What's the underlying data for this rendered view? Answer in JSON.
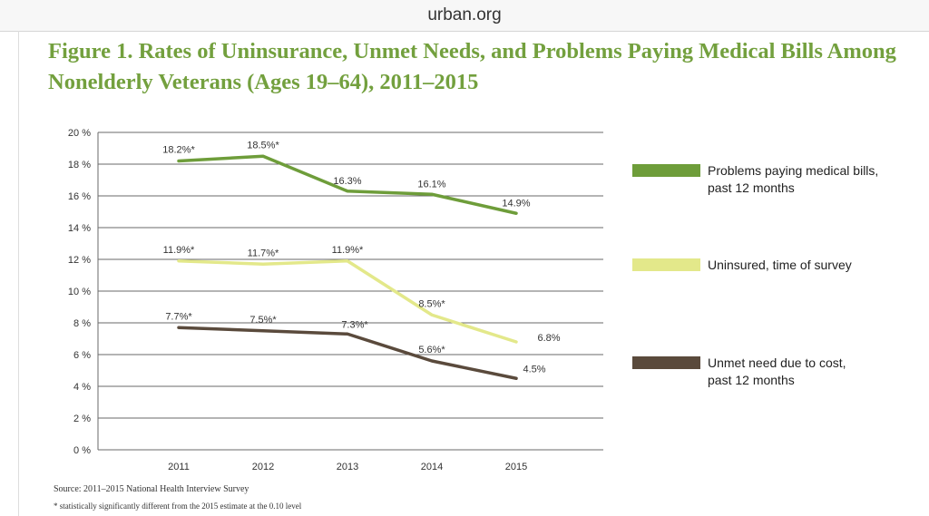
{
  "header": {
    "url": "urban.org"
  },
  "chart_data": {
    "type": "line",
    "title": "Figure 1. Rates of Uninsurance, Unmet Needs, and Problems Paying Medical Bills Among Nonelderly Veterans (Ages 19–64), 2011–2015",
    "x": [
      "2011",
      "2012",
      "2013",
      "2014",
      "2015"
    ],
    "ylim": [
      0,
      20
    ],
    "yticks": [
      {
        "v": 0,
        "label": "0 %"
      },
      {
        "v": 2,
        "label": "2 %"
      },
      {
        "v": 4,
        "label": "4 %"
      },
      {
        "v": 6,
        "label": "6 %"
      },
      {
        "v": 8,
        "label": "8 %"
      },
      {
        "v": 10,
        "label": "10 %"
      },
      {
        "v": 12,
        "label": "12 %"
      },
      {
        "v": 14,
        "label": "14 %"
      },
      {
        "v": 16,
        "label": "16 %"
      },
      {
        "v": 18,
        "label": "18 %"
      },
      {
        "v": 20,
        "label": "20 %"
      }
    ],
    "grid": true,
    "legend_position": "right",
    "series": [
      {
        "name": "Problems paying medical bills, past 12 months",
        "legend_lines": [
          "Problems paying medical bills,",
          "past 12 months"
        ],
        "color": "#6e9d3a",
        "values": [
          18.2,
          18.5,
          16.3,
          16.1,
          14.9
        ],
        "labels": [
          "18.2%*",
          "18.5%*",
          "16.3%",
          "16.1%",
          "14.9%"
        ]
      },
      {
        "name": "Uninsured, time of survey",
        "legend_lines": [
          "Uninsured, time of survey"
        ],
        "color": "#e3e88a",
        "values": [
          11.9,
          11.7,
          11.9,
          8.5,
          6.8
        ],
        "labels": [
          "11.9%*",
          "11.7%*",
          "11.9%*",
          "8.5%*",
          "6.8%"
        ]
      },
      {
        "name": "Unmet need due to cost, past 12 months",
        "legend_lines": [
          "Unmet need due to cost,",
          "past 12 months"
        ],
        "color": "#5a4a3c",
        "values": [
          7.7,
          7.5,
          7.3,
          5.6,
          4.5
        ],
        "labels": [
          "7.7%*",
          "7.5%*",
          "7.3%*",
          "5.6%*",
          "4.5%"
        ]
      }
    ]
  },
  "notes": {
    "source": "Source: 2011–2015 National Health Interview Survey",
    "footnote": "* statistically significantly different from the 2015 estimate at the 0.10 level"
  }
}
